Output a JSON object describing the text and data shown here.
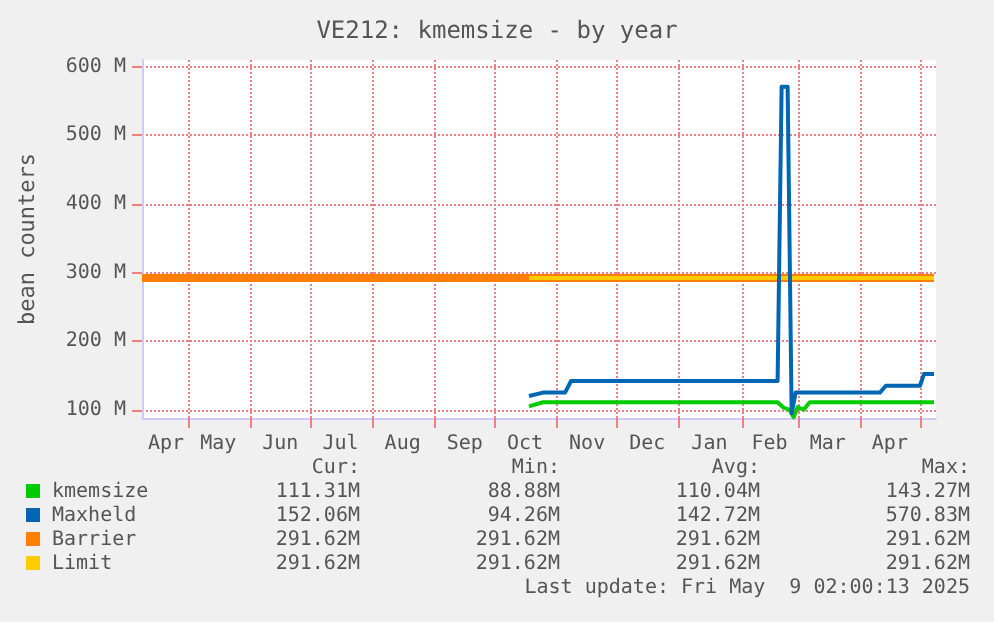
{
  "chart_data": {
    "type": "line",
    "title": "VE212: kmemsize - by year",
    "ylabel": "bean counters",
    "xlim": [
      "2024-04-08",
      "2025-05-09"
    ],
    "xticks": [
      {
        "value": "2024-04-20",
        "label": "Apr"
      },
      {
        "value": "2024-05-01",
        "label": null
      },
      {
        "value": "2024-05-16",
        "label": "May"
      },
      {
        "value": "2024-06-01",
        "label": null
      },
      {
        "value": "2024-06-16",
        "label": "Jun"
      },
      {
        "value": "2024-07-01",
        "label": null
      },
      {
        "value": "2024-07-16",
        "label": "Jul"
      },
      {
        "value": "2024-08-01",
        "label": null
      },
      {
        "value": "2024-08-16",
        "label": "Aug"
      },
      {
        "value": "2024-09-01",
        "label": null
      },
      {
        "value": "2024-09-16",
        "label": "Sep"
      },
      {
        "value": "2024-10-01",
        "label": null
      },
      {
        "value": "2024-10-16",
        "label": "Oct"
      },
      {
        "value": "2024-11-01",
        "label": null
      },
      {
        "value": "2024-11-16",
        "label": "Nov"
      },
      {
        "value": "2024-12-01",
        "label": null
      },
      {
        "value": "2024-12-16",
        "label": "Dec"
      },
      {
        "value": "2025-01-01",
        "label": null
      },
      {
        "value": "2025-01-16",
        "label": "Jan"
      },
      {
        "value": "2025-02-01",
        "label": null
      },
      {
        "value": "2025-02-15",
        "label": "Feb"
      },
      {
        "value": "2025-03-01",
        "label": null
      },
      {
        "value": "2025-03-16",
        "label": "Mar"
      },
      {
        "value": "2025-04-01",
        "label": null
      },
      {
        "value": "2025-04-16",
        "label": "Apr"
      },
      {
        "value": "2025-05-01",
        "label": null
      }
    ],
    "ylim": [
      88,
      610
    ],
    "yticks": [
      {
        "value": 100,
        "label": "100 M"
      },
      {
        "value": 200,
        "label": "200 M"
      },
      {
        "value": 300,
        "label": "300 M"
      },
      {
        "value": 400,
        "label": "400 M"
      },
      {
        "value": 500,
        "label": "500 M"
      },
      {
        "value": 600,
        "label": "600 M"
      }
    ],
    "grid": true,
    "legend": "bottom",
    "marker": "none",
    "line_style": "solid",
    "series": [
      {
        "name": "Barrier",
        "color": "#ff7f00",
        "x": [
          "2024-04-08",
          "2025-05-08"
        ],
        "values": [
          292,
          292
        ]
      },
      {
        "name": "Limit",
        "color": "#ffcc00",
        "x": [
          "2024-10-18",
          "2025-05-08"
        ],
        "values": [
          292,
          292
        ]
      },
      {
        "name": "kmemsize",
        "color": "#00cc00",
        "x": [
          "2024-10-18",
          "2024-10-25",
          "2024-11-07",
          "2025-02-19",
          "2025-02-22",
          "2025-02-25",
          "2025-02-27",
          "2025-03-01",
          "2025-03-04",
          "2025-03-07",
          "2025-05-08"
        ],
        "values": [
          105,
          111,
          111,
          111,
          103,
          100,
          89,
          104,
          100,
          111,
          111
        ]
      },
      {
        "name": "Maxheld",
        "color": "#0066b3",
        "x": [
          "2024-10-18",
          "2024-10-25",
          "2024-11-05",
          "2024-11-08",
          "2025-02-19",
          "2025-02-21",
          "2025-02-24",
          "2025-02-26",
          "2025-02-28",
          "2025-04-11",
          "2025-04-14",
          "2025-05-01",
          "2025-05-03",
          "2025-05-08"
        ],
        "values": [
          120,
          125,
          125,
          142,
          142,
          571,
          571,
          95,
          125,
          125,
          135,
          135,
          152,
          152
        ]
      }
    ],
    "annotations": [
      "Cur:",
      "Min:",
      "Avg:",
      "Max:",
      "111.31M",
      "88.88M",
      "110.04M",
      "143.27M",
      "152.06M",
      "94.26M",
      "142.72M",
      "570.83M",
      "291.62M",
      "291.62M",
      "291.62M",
      "291.62M",
      "291.62M",
      "291.62M",
      "291.62M",
      "291.62M",
      "Last update: Fri May  9 02:00:13 2025"
    ]
  }
}
